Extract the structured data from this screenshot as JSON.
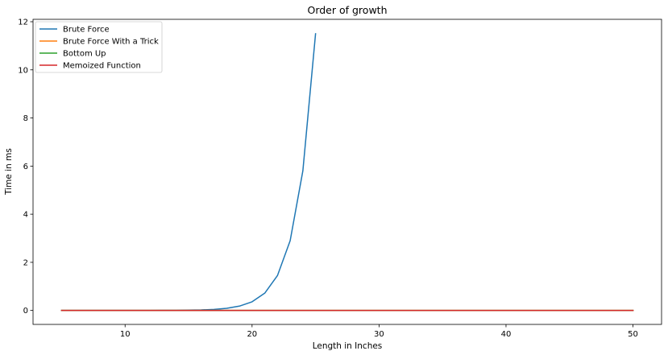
{
  "chart_data": {
    "type": "line",
    "title": "Order of growth",
    "xlabel": "Length in Inches",
    "ylabel": "Time in ms",
    "xlim": [
      2.75,
      52.25
    ],
    "ylim": [
      -0.58,
      12.1
    ],
    "xticks": [
      10,
      20,
      30,
      40,
      50
    ],
    "yticks": [
      0,
      2,
      4,
      6,
      8,
      10,
      12
    ],
    "grid": false,
    "legend_position": "top-left",
    "series": [
      {
        "name": "Brute Force",
        "color": "#1f77b4",
        "x": [
          5,
          6,
          7,
          8,
          9,
          10,
          11,
          12,
          13,
          14,
          15,
          16,
          17,
          18,
          19,
          20,
          21,
          22,
          23,
          24,
          25
        ],
        "y": [
          0.0,
          0.0,
          0.0,
          0.0,
          0.0,
          0.001,
          0.001,
          0.002,
          0.004,
          0.007,
          0.012,
          0.022,
          0.045,
          0.09,
          0.18,
          0.36,
          0.72,
          1.45,
          2.9,
          5.8,
          11.5
        ]
      },
      {
        "name": "Brute Force With a Trick",
        "color": "#ff7f0e",
        "x": [
          5,
          50
        ],
        "y": [
          0.0,
          0.0
        ]
      },
      {
        "name": "Bottom Up",
        "color": "#2ca02c",
        "x": [
          5,
          50
        ],
        "y": [
          0.0,
          0.0
        ]
      },
      {
        "name": "Memoized Function",
        "color": "#d62728",
        "x": [
          5,
          50
        ],
        "y": [
          0.0,
          0.0
        ]
      }
    ]
  }
}
